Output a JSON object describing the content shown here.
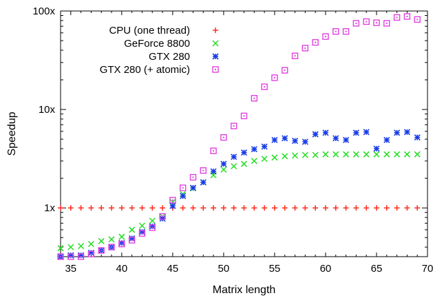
{
  "chart_data": {
    "type": "scatter",
    "title": "",
    "xlabel": "Matrix length",
    "ylabel": "Speedup",
    "xlim": [
      34,
      70
    ],
    "ylim": [
      0.32,
      100
    ],
    "yscale": "log",
    "grid": false,
    "legend_position": "top-left",
    "x_ticks": [
      35,
      40,
      45,
      50,
      55,
      60,
      65,
      70
    ],
    "x_tick_labels": [
      "35",
      "40",
      "45",
      "50",
      "55",
      "60",
      "65",
      "70"
    ],
    "y_ticks": [
      1,
      10,
      100
    ],
    "y_tick_labels": [
      "1x",
      "10x",
      "100x"
    ],
    "x": [
      34,
      35,
      36,
      37,
      38,
      39,
      40,
      41,
      42,
      43,
      44,
      45,
      46,
      47,
      48,
      49,
      50,
      51,
      52,
      53,
      54,
      55,
      56,
      57,
      58,
      59,
      60,
      61,
      62,
      63,
      64,
      65,
      66,
      67,
      68,
      69
    ],
    "series": [
      {
        "name": "CPU (one thread)",
        "marker": "plus",
        "color": "#ff2a1a",
        "values": [
          1,
          1,
          1,
          1,
          1,
          1,
          1,
          1,
          1,
          1,
          1,
          1,
          1,
          1,
          1,
          1,
          1,
          1,
          1,
          1,
          1,
          1,
          1,
          1,
          1,
          1,
          1,
          1,
          1,
          1,
          1,
          1,
          1,
          1,
          1,
          1
        ]
      },
      {
        "name": "GeForce 8800",
        "marker": "x",
        "color": "#22dd22",
        "values": [
          0.39,
          0.4,
          0.41,
          0.43,
          0.46,
          0.48,
          0.51,
          0.6,
          0.66,
          0.74,
          0.82,
          1.15,
          1.38,
          1.58,
          1.82,
          2.15,
          2.45,
          2.65,
          2.8,
          3.0,
          3.15,
          3.25,
          3.35,
          3.4,
          3.45,
          3.45,
          3.5,
          3.5,
          3.5,
          3.5,
          3.5,
          3.5,
          3.5,
          3.5,
          3.5,
          3.5
        ]
      },
      {
        "name": "GTX 280",
        "marker": "star",
        "color": "#1a3de8",
        "values": [
          0.32,
          0.33,
          0.33,
          0.35,
          0.37,
          0.4,
          0.44,
          0.49,
          0.57,
          0.65,
          0.78,
          1.05,
          1.32,
          1.6,
          1.82,
          2.35,
          2.8,
          3.3,
          3.65,
          3.95,
          4.2,
          4.9,
          5.1,
          4.8,
          4.7,
          5.6,
          5.8,
          5.1,
          4.9,
          5.8,
          5.9,
          4.0,
          4.9,
          5.8,
          5.9,
          5.2
        ]
      },
      {
        "name": "GTX 280 (+ atomic)",
        "marker": "square",
        "color": "#e040e0",
        "values": [
          0.32,
          0.32,
          0.32,
          0.34,
          0.37,
          0.4,
          0.43,
          0.47,
          0.55,
          0.63,
          0.82,
          1.2,
          1.6,
          2.05,
          2.4,
          3.8,
          5.2,
          6.8,
          8.6,
          13.0,
          17.0,
          21.0,
          25.0,
          35.0,
          42.0,
          48.0,
          55.0,
          62.0,
          62.0,
          75.0,
          78.0,
          76.0,
          75.0,
          86.0,
          88.0,
          82.0
        ]
      }
    ]
  }
}
